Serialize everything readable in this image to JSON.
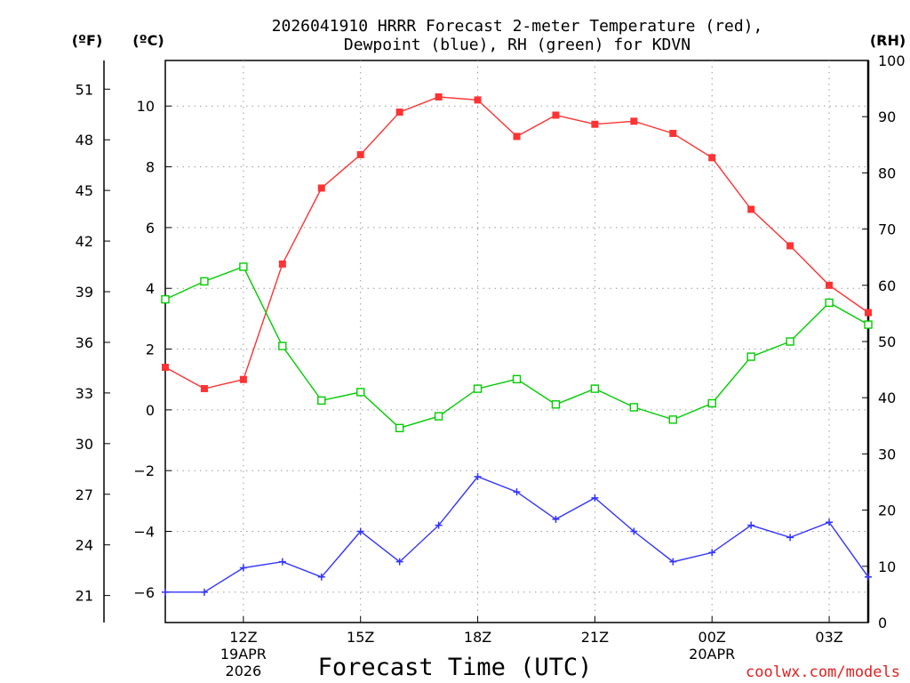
{
  "chart_data": {
    "type": "line",
    "title": "2026041910 HRRR Forecast 2-meter Temperature (red),",
    "subtitle": "Dewpoint (blue), RH (green) for KDVN",
    "xlabel": "Forecast Time (UTC)",
    "credit": "coolwx.com/models",
    "units": {
      "fahrenheit": "(ºF)",
      "celsius": "(ºC)",
      "rh": "(RH)"
    },
    "x": [
      10,
      11,
      12,
      13,
      14,
      15,
      16,
      17,
      18,
      19,
      20,
      21,
      22,
      23,
      24,
      25,
      26,
      27,
      28
    ],
    "xlim": [
      10,
      28
    ],
    "x_ticks": [
      {
        "x": 12,
        "lines": [
          "12Z",
          "19APR",
          "2026"
        ]
      },
      {
        "x": 15,
        "lines": [
          "15Z"
        ]
      },
      {
        "x": 18,
        "lines": [
          "18Z"
        ]
      },
      {
        "x": 21,
        "lines": [
          "21Z"
        ]
      },
      {
        "x": 24,
        "lines": [
          "00Z",
          "20APR"
        ]
      },
      {
        "x": 27,
        "lines": [
          "03Z"
        ]
      }
    ],
    "celsius_axis": {
      "ylim": [
        -7,
        11.5
      ],
      "ticks": [
        -6,
        -4,
        -2,
        0,
        2,
        4,
        6,
        8,
        10
      ],
      "tick_labels": [
        "−6",
        "−4",
        "−2",
        "0",
        "2",
        "4",
        "6",
        "8",
        "10"
      ]
    },
    "fahrenheit_axis": {
      "ticks": [
        21,
        24,
        27,
        30,
        33,
        36,
        39,
        42,
        45,
        48,
        51
      ],
      "tick_labels": [
        "21",
        "24",
        "27",
        "30",
        "33",
        "36",
        "39",
        "42",
        "45",
        "48",
        "51"
      ]
    },
    "rh_axis": {
      "ylim": [
        0,
        100
      ],
      "ticks": [
        0,
        10,
        20,
        30,
        40,
        50,
        60,
        70,
        80,
        90,
        100
      ],
      "tick_labels": [
        "0",
        "10",
        "20",
        "30",
        "40",
        "50",
        "60",
        "70",
        "80",
        "90",
        "100"
      ]
    },
    "series": [
      {
        "name": "Temperature",
        "axis": "celsius",
        "color": "#ff3333",
        "marker": "filled-square",
        "values": [
          1.4,
          0.7,
          1.0,
          4.8,
          7.3,
          8.4,
          9.8,
          10.3,
          10.2,
          9.0,
          9.7,
          9.4,
          9.5,
          9.1,
          8.3,
          6.6,
          5.4,
          4.1,
          3.2
        ]
      },
      {
        "name": "Dewpoint",
        "axis": "celsius",
        "color": "#3333ff",
        "marker": "plus",
        "values": [
          -6.0,
          -6.0,
          -5.2,
          -5.0,
          -5.5,
          -4.0,
          -5.0,
          -3.8,
          -2.2,
          -2.7,
          -3.6,
          -2.9,
          -4.0,
          -5.0,
          -4.7,
          -3.8,
          -4.2,
          -3.7,
          -5.5
        ]
      },
      {
        "name": "RH",
        "axis": "rh",
        "color": "#00cc00",
        "marker": "open-square",
        "values": [
          57.5,
          60.7,
          63.3,
          49.2,
          39.5,
          41.0,
          34.6,
          36.7,
          41.6,
          43.3,
          38.8,
          41.6,
          38.3,
          36.1,
          39.0,
          47.3,
          50.0,
          56.9,
          53.0
        ]
      }
    ]
  }
}
